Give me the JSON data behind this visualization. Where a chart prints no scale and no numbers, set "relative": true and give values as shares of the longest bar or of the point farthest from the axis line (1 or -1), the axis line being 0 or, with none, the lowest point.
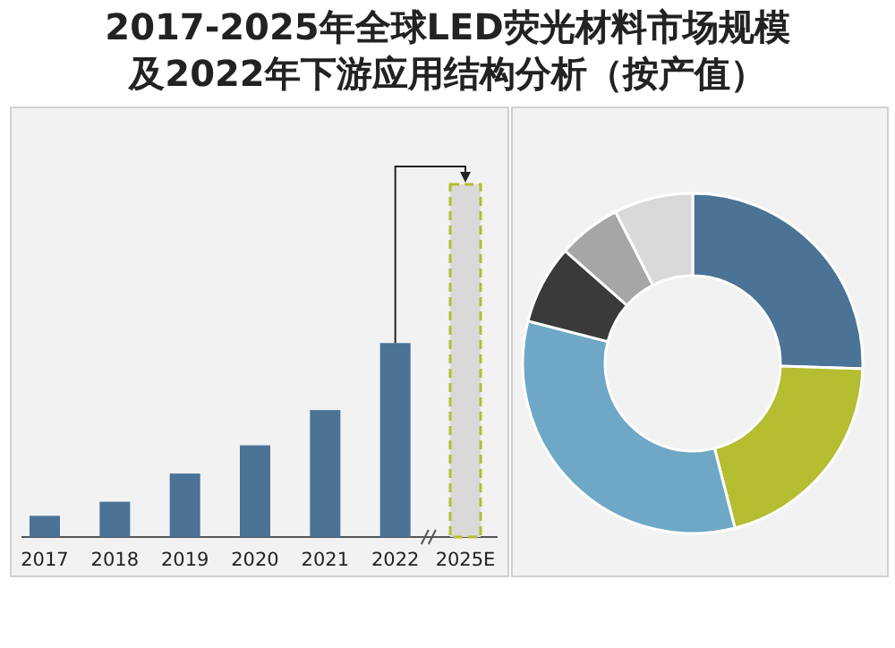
{
  "chart_data": [
    {
      "type": "bar",
      "title": "2017-2025年全球LED荧光材料市场规模及2022年下游应用结构分析（按产值）",
      "relative": true,
      "categories": [
        "2017",
        "2018",
        "2019",
        "2020",
        "2021",
        "2022",
        "2025E"
      ],
      "values": [
        0.06,
        0.1,
        0.18,
        0.26,
        0.36,
        0.55,
        1
      ],
      "colors": [
        "#4a7396",
        "#4a7396",
        "#4a7396",
        "#4a7396",
        "#4a7396",
        "#4a7396",
        "#d9d9d9"
      ]
    },
    {
      "type": "donut",
      "categories": [
        null,
        null,
        null,
        null,
        null,
        null
      ],
      "values": [
        25.5,
        20.5,
        33,
        7.5,
        6,
        7.5
      ],
      "colors": [
        "#4a7396",
        "#b5bd31",
        "#6fa8c6",
        "#3a3a3a",
        "#a6a6a6",
        "#d9d9d9"
      ]
    }
  ]
}
